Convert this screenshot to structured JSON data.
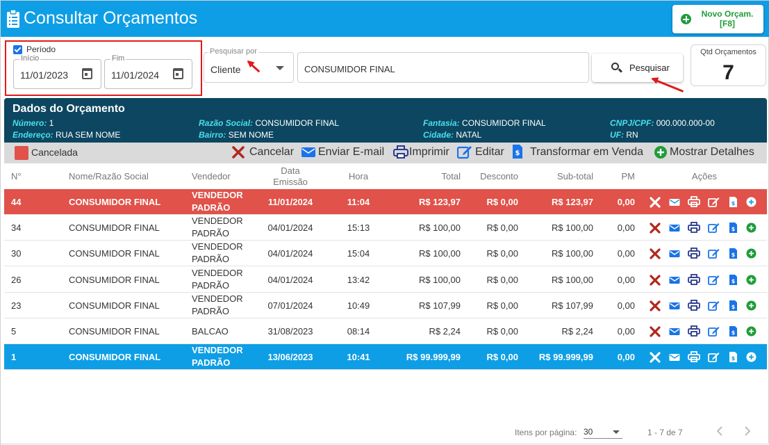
{
  "header": {
    "title": "Consultar Orçamentos",
    "novo_label_1": "Novo Orçam.",
    "novo_label_2": "[F8]"
  },
  "filters": {
    "periodo_label": "Período",
    "inicio_label": "Início",
    "inicio_value": "11/01/2023",
    "fim_label": "Fim",
    "fim_value": "11/01/2024",
    "pesquisar_por_label": "Pesquisar por",
    "pesquisar_por_value": "Cliente",
    "search_value": "CONSUMIDOR FINAL",
    "pesquisar_button": "Pesquisar",
    "qtd_label": "Qtd Orçamentos",
    "qtd_value": "7"
  },
  "dados": {
    "title": "Dados do Orçamento",
    "numero_label": "Número:",
    "numero": "1",
    "razao_label": "Razão Social:",
    "razao": "CONSUMIDOR FINAL",
    "fantasia_label": "Fantasia:",
    "fantasia": "CONSUMIDOR FINAL",
    "cnpj_label": "CNPJ/CPF:",
    "cnpj": "000.000.000-00",
    "endereco_label": "Endereço:",
    "endereco": "RUA SEM NOME",
    "bairro_label": "Bairro:",
    "bairro": "SEM NOME",
    "cidade_label": "Cidade:",
    "cidade": "NATAL",
    "uf_label": "UF:",
    "uf": "RN"
  },
  "toolbar": {
    "legend": "Cancelada",
    "cancelar": "Cancelar",
    "email": "Enviar E-mail",
    "imprimir": "Imprimir",
    "editar": "Editar",
    "transformar": "Transformar em Venda",
    "detalhes": "Mostrar Detalhes"
  },
  "columns": {
    "num": "N°",
    "nome": "Nome/Razão Social",
    "vendedor": "Vendedor",
    "data1": "Data",
    "data2": "Emissão",
    "hora": "Hora",
    "total": "Total",
    "desconto": "Desconto",
    "subtotal": "Sub-total",
    "pm": "PM",
    "acoes": "Ações"
  },
  "rows": [
    {
      "num": "44",
      "nome": "CONSUMIDOR FINAL",
      "vend1": "VENDEDOR",
      "vend2": "PADRÃO",
      "data": "11/01/2024",
      "hora": "11:04",
      "total": "R$ 123,97",
      "desconto": "R$ 0,00",
      "subtotal": "R$ 123,97",
      "pm": "0,00",
      "status": "cancelada"
    },
    {
      "num": "34",
      "nome": "CONSUMIDOR FINAL",
      "vend1": "VENDEDOR",
      "vend2": "PADRÃO",
      "data": "04/01/2024",
      "hora": "15:13",
      "total": "R$ 100,00",
      "desconto": "R$ 0,00",
      "subtotal": "R$ 100,00",
      "pm": "0,00",
      "status": "normal"
    },
    {
      "num": "30",
      "nome": "CONSUMIDOR FINAL",
      "vend1": "VENDEDOR",
      "vend2": "PADRÃO",
      "data": "04/01/2024",
      "hora": "15:04",
      "total": "R$ 100,00",
      "desconto": "R$ 0,00",
      "subtotal": "R$ 100,00",
      "pm": "0,00",
      "status": "normal"
    },
    {
      "num": "26",
      "nome": "CONSUMIDOR FINAL",
      "vend1": "VENDEDOR",
      "vend2": "PADRÃO",
      "data": "04/01/2024",
      "hora": "13:42",
      "total": "R$ 100,00",
      "desconto": "R$ 0,00",
      "subtotal": "R$ 100,00",
      "pm": "0,00",
      "status": "normal"
    },
    {
      "num": "23",
      "nome": "CONSUMIDOR FINAL",
      "vend1": "VENDEDOR",
      "vend2": "PADRÃO",
      "data": "07/01/2024",
      "hora": "10:49",
      "total": "R$ 107,99",
      "desconto": "R$ 0,00",
      "subtotal": "R$ 107,99",
      "pm": "0,00",
      "status": "normal"
    },
    {
      "num": "5",
      "nome": "CONSUMIDOR FINAL",
      "vend1": "BALCAO",
      "vend2": "",
      "data": "31/08/2023",
      "hora": "08:14",
      "total": "R$ 2,24",
      "desconto": "R$ 0,00",
      "subtotal": "R$ 2,24",
      "pm": "0,00",
      "status": "normal"
    },
    {
      "num": "1",
      "nome": "CONSUMIDOR FINAL",
      "vend1": "VENDEDOR",
      "vend2": "PADRÃO",
      "data": "13/06/2023",
      "hora": "10:41",
      "total": "R$ 99.999,99",
      "desconto": "R$ 0,00",
      "subtotal": "R$ 99.999,99",
      "pm": "0,00",
      "status": "selected"
    }
  ],
  "pagination": {
    "label": "Itens por página:",
    "per_page": "30",
    "range": "1 - 7 de 7"
  },
  "icons": {
    "clipboard": "clipboard-icon",
    "cancel": "x-icon",
    "email": "envelope-icon",
    "print": "printer-icon",
    "edit": "edit-icon",
    "transform": "invoice-icon",
    "details": "plus-circle-icon"
  },
  "colors": {
    "header": "#0e9ee6",
    "dados": "#0d4660",
    "cancelada": "#e0524a",
    "selected": "#0e9ee6",
    "accent": "#48e0ee",
    "green": "#1f9d3a",
    "red_x": "#b0281c",
    "icon_blue": "#1a73e8",
    "print": "#2a3a8c"
  }
}
